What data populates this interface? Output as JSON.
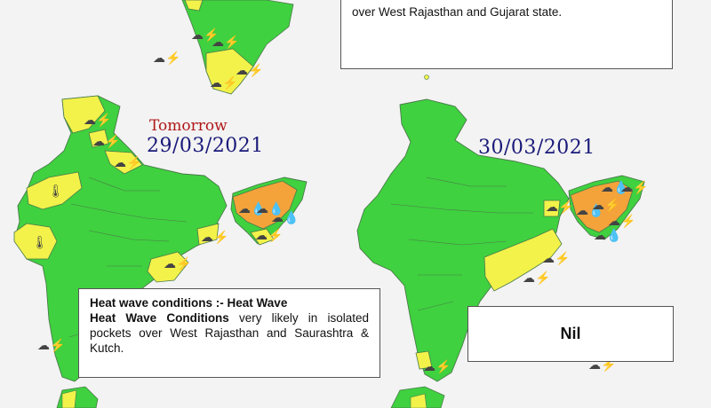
{
  "panels": {
    "top_left": {
      "name": "top-left-map"
    },
    "top_right": {
      "note_line": "over West Rajasthan and Gujarat state."
    },
    "day2": {
      "tomorrow_label": "Tomorrow",
      "date": "29/03/2021",
      "note_heading": "Heat wave conditions :-",
      "note_bold": "Heat Wave Conditions",
      "note_lead": "Heat Wave",
      "note_body": "very likely in isolated pockets over West Rajasthan and Saurashtra & Kutch."
    },
    "day3": {
      "date": "30/03/2021",
      "note": "Nil"
    }
  },
  "colors": {
    "green": "#3fd13f",
    "yellow": "#f2f24a",
    "orange": "#f3a33a",
    "border": "#4a7a4a",
    "label_blue": "#1a1a7a",
    "label_red": "#b01818"
  },
  "icons": {
    "thunder": "thunderstorm-icon",
    "heat": "thermometer-icon",
    "rain": "rain-cloud-icon"
  }
}
